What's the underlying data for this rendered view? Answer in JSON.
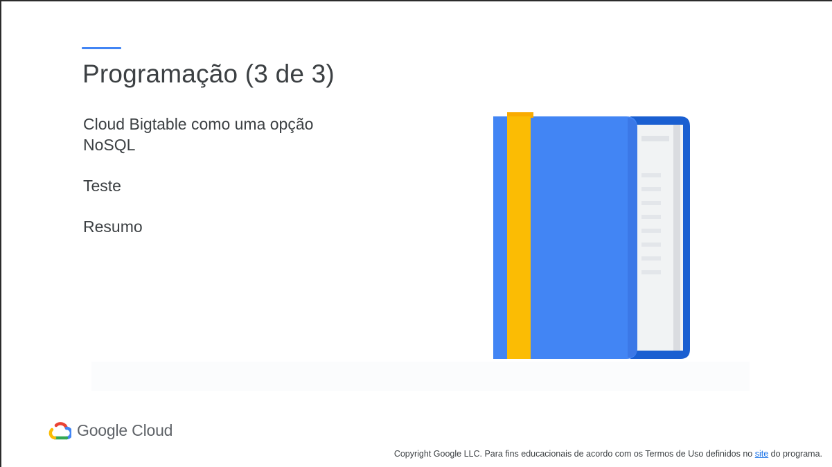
{
  "slide": {
    "title": "Programação (3 de 3)",
    "agenda": [
      "Cloud Bigtable como uma opção NoSQL",
      "Teste",
      "Resumo"
    ]
  },
  "branding": {
    "logo_text": "Google Cloud"
  },
  "footer": {
    "text_before": "Copyright Google LLC. Para fins educacionais de acordo com os Termos de Uso definidos no ",
    "link_text": "site",
    "text_after": " do programa."
  },
  "colors": {
    "accent": "#4285f4",
    "book_blue": "#4285f4",
    "book_dark_blue": "#1a5fd1",
    "bookmark_yellow": "#fbbc04",
    "text": "#3c4043",
    "link": "#1a73e8"
  },
  "icons": {
    "illustration": "book-icon",
    "logo": "google-cloud-logo-icon"
  }
}
